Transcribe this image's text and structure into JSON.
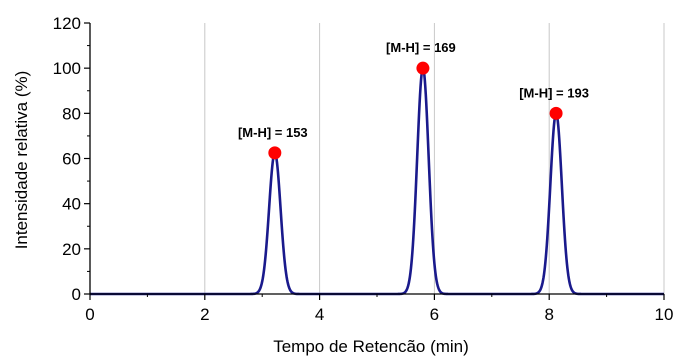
{
  "chart_data": {
    "type": "line",
    "xlabel": "Tempo de Retencão (min)",
    "ylabel": "Intensidade relativa (%)",
    "xlim": [
      0,
      10
    ],
    "ylim": [
      0,
      120
    ],
    "x_ticks": [
      0,
      2,
      4,
      6,
      8,
      10
    ],
    "y_ticks": [
      0,
      20,
      40,
      60,
      80,
      100,
      120
    ],
    "grid": "vertical",
    "line_color": "#1a1a8c",
    "marker_color": "#ff0000",
    "series": [
      {
        "peaks": [
          {
            "x": 3.22,
            "y": 62.5,
            "label": "[M-H] = 153"
          },
          {
            "x": 5.8,
            "y": 100,
            "label": "[M-H] = 169"
          },
          {
            "x": 8.12,
            "y": 80,
            "label": "[M-H] = 193"
          }
        ]
      }
    ]
  }
}
